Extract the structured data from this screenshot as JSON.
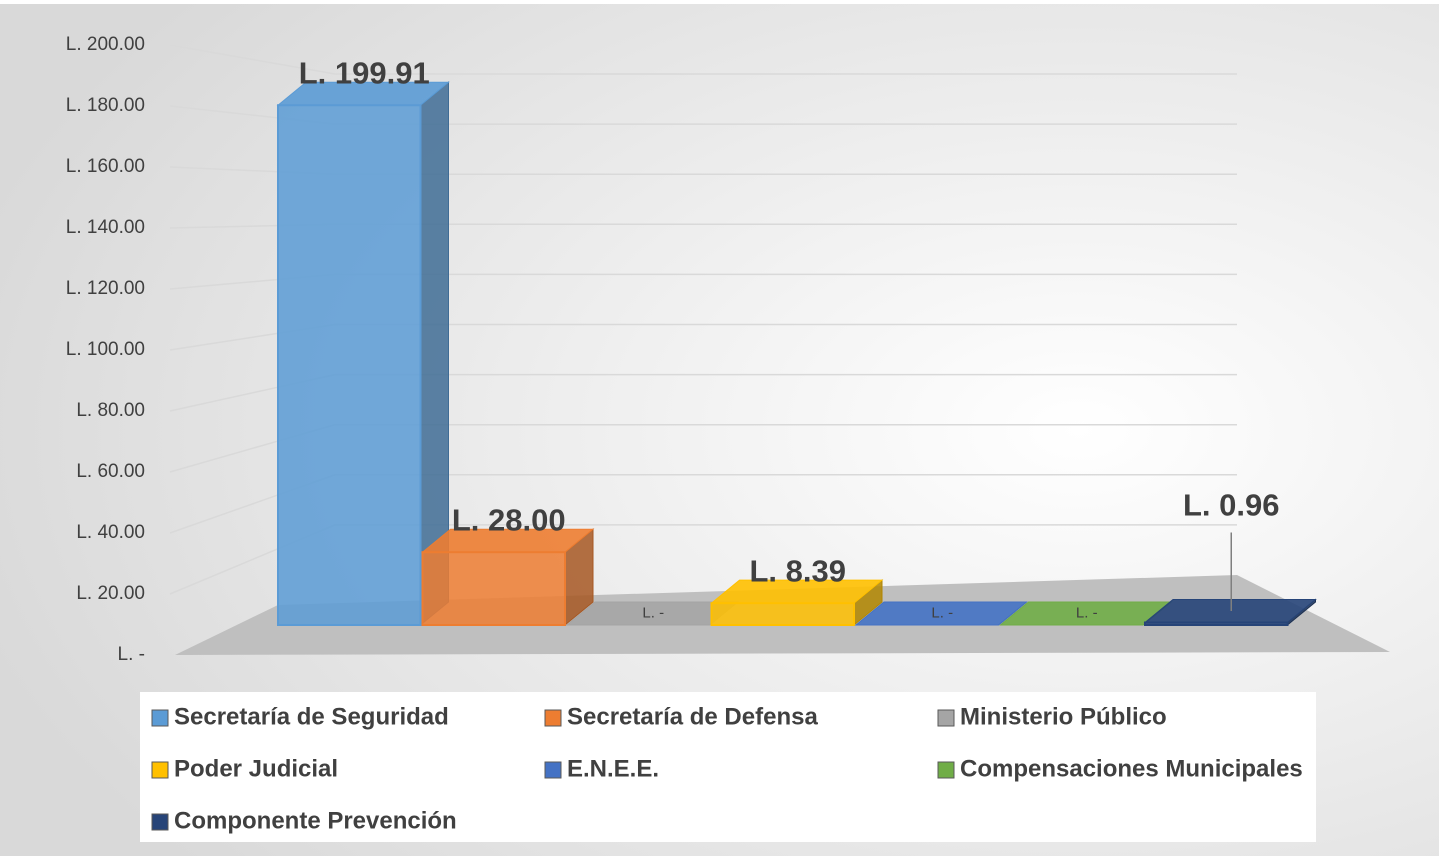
{
  "chart_data": {
    "type": "bar",
    "series": [
      {
        "name": "Secretaría de Seguridad",
        "color": "#5b9bd5",
        "values": [
          199.91
        ],
        "value_labels": [
          "L. 199.91"
        ]
      },
      {
        "name": "Secretaría de Defensa",
        "color": "#ed7d31",
        "values": [
          28.0
        ],
        "value_labels": [
          "L. 28.00"
        ]
      },
      {
        "name": "Ministerio Público",
        "color": "#a5a5a5",
        "values": [
          0
        ],
        "value_labels": [
          "L. -"
        ]
      },
      {
        "name": "Poder Judicial",
        "color": "#ffc000",
        "values": [
          8.39
        ],
        "value_labels": [
          "L. 8.39"
        ]
      },
      {
        "name": "E.N.E.E.",
        "color": "#4472c4",
        "values": [
          0
        ],
        "value_labels": [
          "L. -"
        ]
      },
      {
        "name": "Compensaciones Municipales",
        "color": "#70ad47",
        "values": [
          0
        ],
        "value_labels": [
          "L. -"
        ]
      },
      {
        "name": "Componente Prevención",
        "color": "#264478",
        "values": [
          0.96
        ],
        "value_labels": [
          "L. 0.96"
        ]
      }
    ],
    "ylim": [
      0,
      200
    ],
    "yticks": [
      {
        "value": 0,
        "label": "L. -"
      },
      {
        "value": 20,
        "label": "L. 20.00"
      },
      {
        "value": 40,
        "label": "L. 40.00"
      },
      {
        "value": 60,
        "label": "L. 60.00"
      },
      {
        "value": 80,
        "label": "L. 80.00"
      },
      {
        "value": 100,
        "label": "L. 100.00"
      },
      {
        "value": 120,
        "label": "L. 120.00"
      },
      {
        "value": 140,
        "label": "L. 140.00"
      },
      {
        "value": 160,
        "label": "L. 160.00"
      },
      {
        "value": 180,
        "label": "L. 180.00"
      },
      {
        "value": 200,
        "label": "L. 200.00"
      }
    ],
    "grid": true,
    "legend": "bottom"
  }
}
